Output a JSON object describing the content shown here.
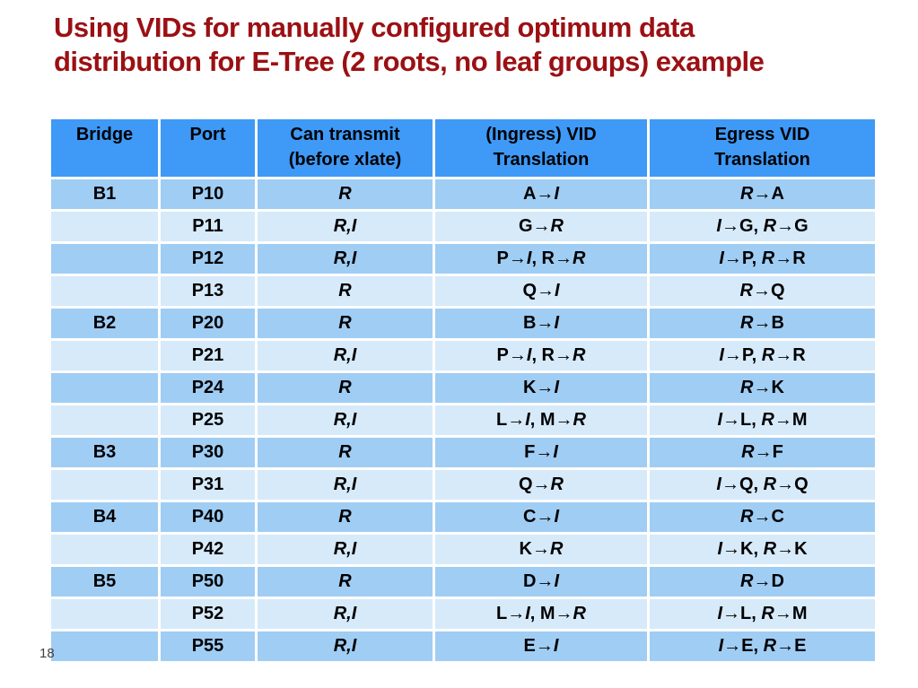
{
  "title": "Using VIDs for manually configured optimum data\ndistribution for E-Tree (2 roots, no leaf groups) example",
  "page_number": "18",
  "colors": {
    "title_red": "#9B1013",
    "header_blue": "#3E99F7",
    "row_medium": "#A0CDF4",
    "row_light": "#D6EAFA",
    "border_white": "#FFFFFF",
    "text_black": "#000000"
  },
  "table": {
    "italic_marker": "*",
    "headers": [
      {
        "id": "bridge",
        "label": "Bridge"
      },
      {
        "id": "port",
        "label": "Port"
      },
      {
        "id": "can-transmit",
        "label": "Can transmit\n(before xlate)"
      },
      {
        "id": "ingress-vid-translation",
        "label": "(Ingress) VID\nTranslation"
      },
      {
        "id": "egress-vid-translation",
        "label": "Egress VID\nTranslation"
      }
    ],
    "rows": [
      [
        "B1",
        "P10",
        "*R*",
        "A→*I*",
        "*R*→A"
      ],
      [
        "",
        "P11",
        "*R,I*",
        "G→*R*",
        "*I*→G, *R*→G"
      ],
      [
        "",
        "P12",
        "*R,I*",
        "P→*I*, R→*R*",
        "*I*→P, *R*→R"
      ],
      [
        "",
        "P13",
        "*R*",
        "Q→*I*",
        "*R*→Q"
      ],
      [
        "B2",
        "P20",
        "*R*",
        "B→*I*",
        "*R*→B"
      ],
      [
        "",
        "P21",
        "*R,I*",
        "P→*I*, R→*R*",
        "*I*→P, *R*→R"
      ],
      [
        "",
        "P24",
        "*R*",
        "K→*I*",
        "*R*→K"
      ],
      [
        "",
        "P25",
        "*R,I*",
        "L→*I*, M→*R*",
        "*I*→L, *R*→M"
      ],
      [
        "B3",
        "P30",
        "*R*",
        "F→*I*",
        "*R*→F"
      ],
      [
        "",
        "P31",
        "*R,I*",
        "Q→*R*",
        "*I*→Q, *R*→Q"
      ],
      [
        "B4",
        "P40",
        "*R*",
        "C→*I*",
        "*R*→C"
      ],
      [
        "",
        "P42",
        "*R,I*",
        "K→*R*",
        "*I*→K, *R*→K"
      ],
      [
        "B5",
        "P50",
        "*R*",
        "D→*I*",
        "*R*→D"
      ],
      [
        "",
        "P52",
        "*R,I*",
        "L→*I*, M→*R*",
        "*I*→L, *R*→M"
      ],
      [
        "",
        "P55",
        "*R,I*",
        "E→*I*",
        "*I*→E, *R*→E"
      ]
    ]
  }
}
